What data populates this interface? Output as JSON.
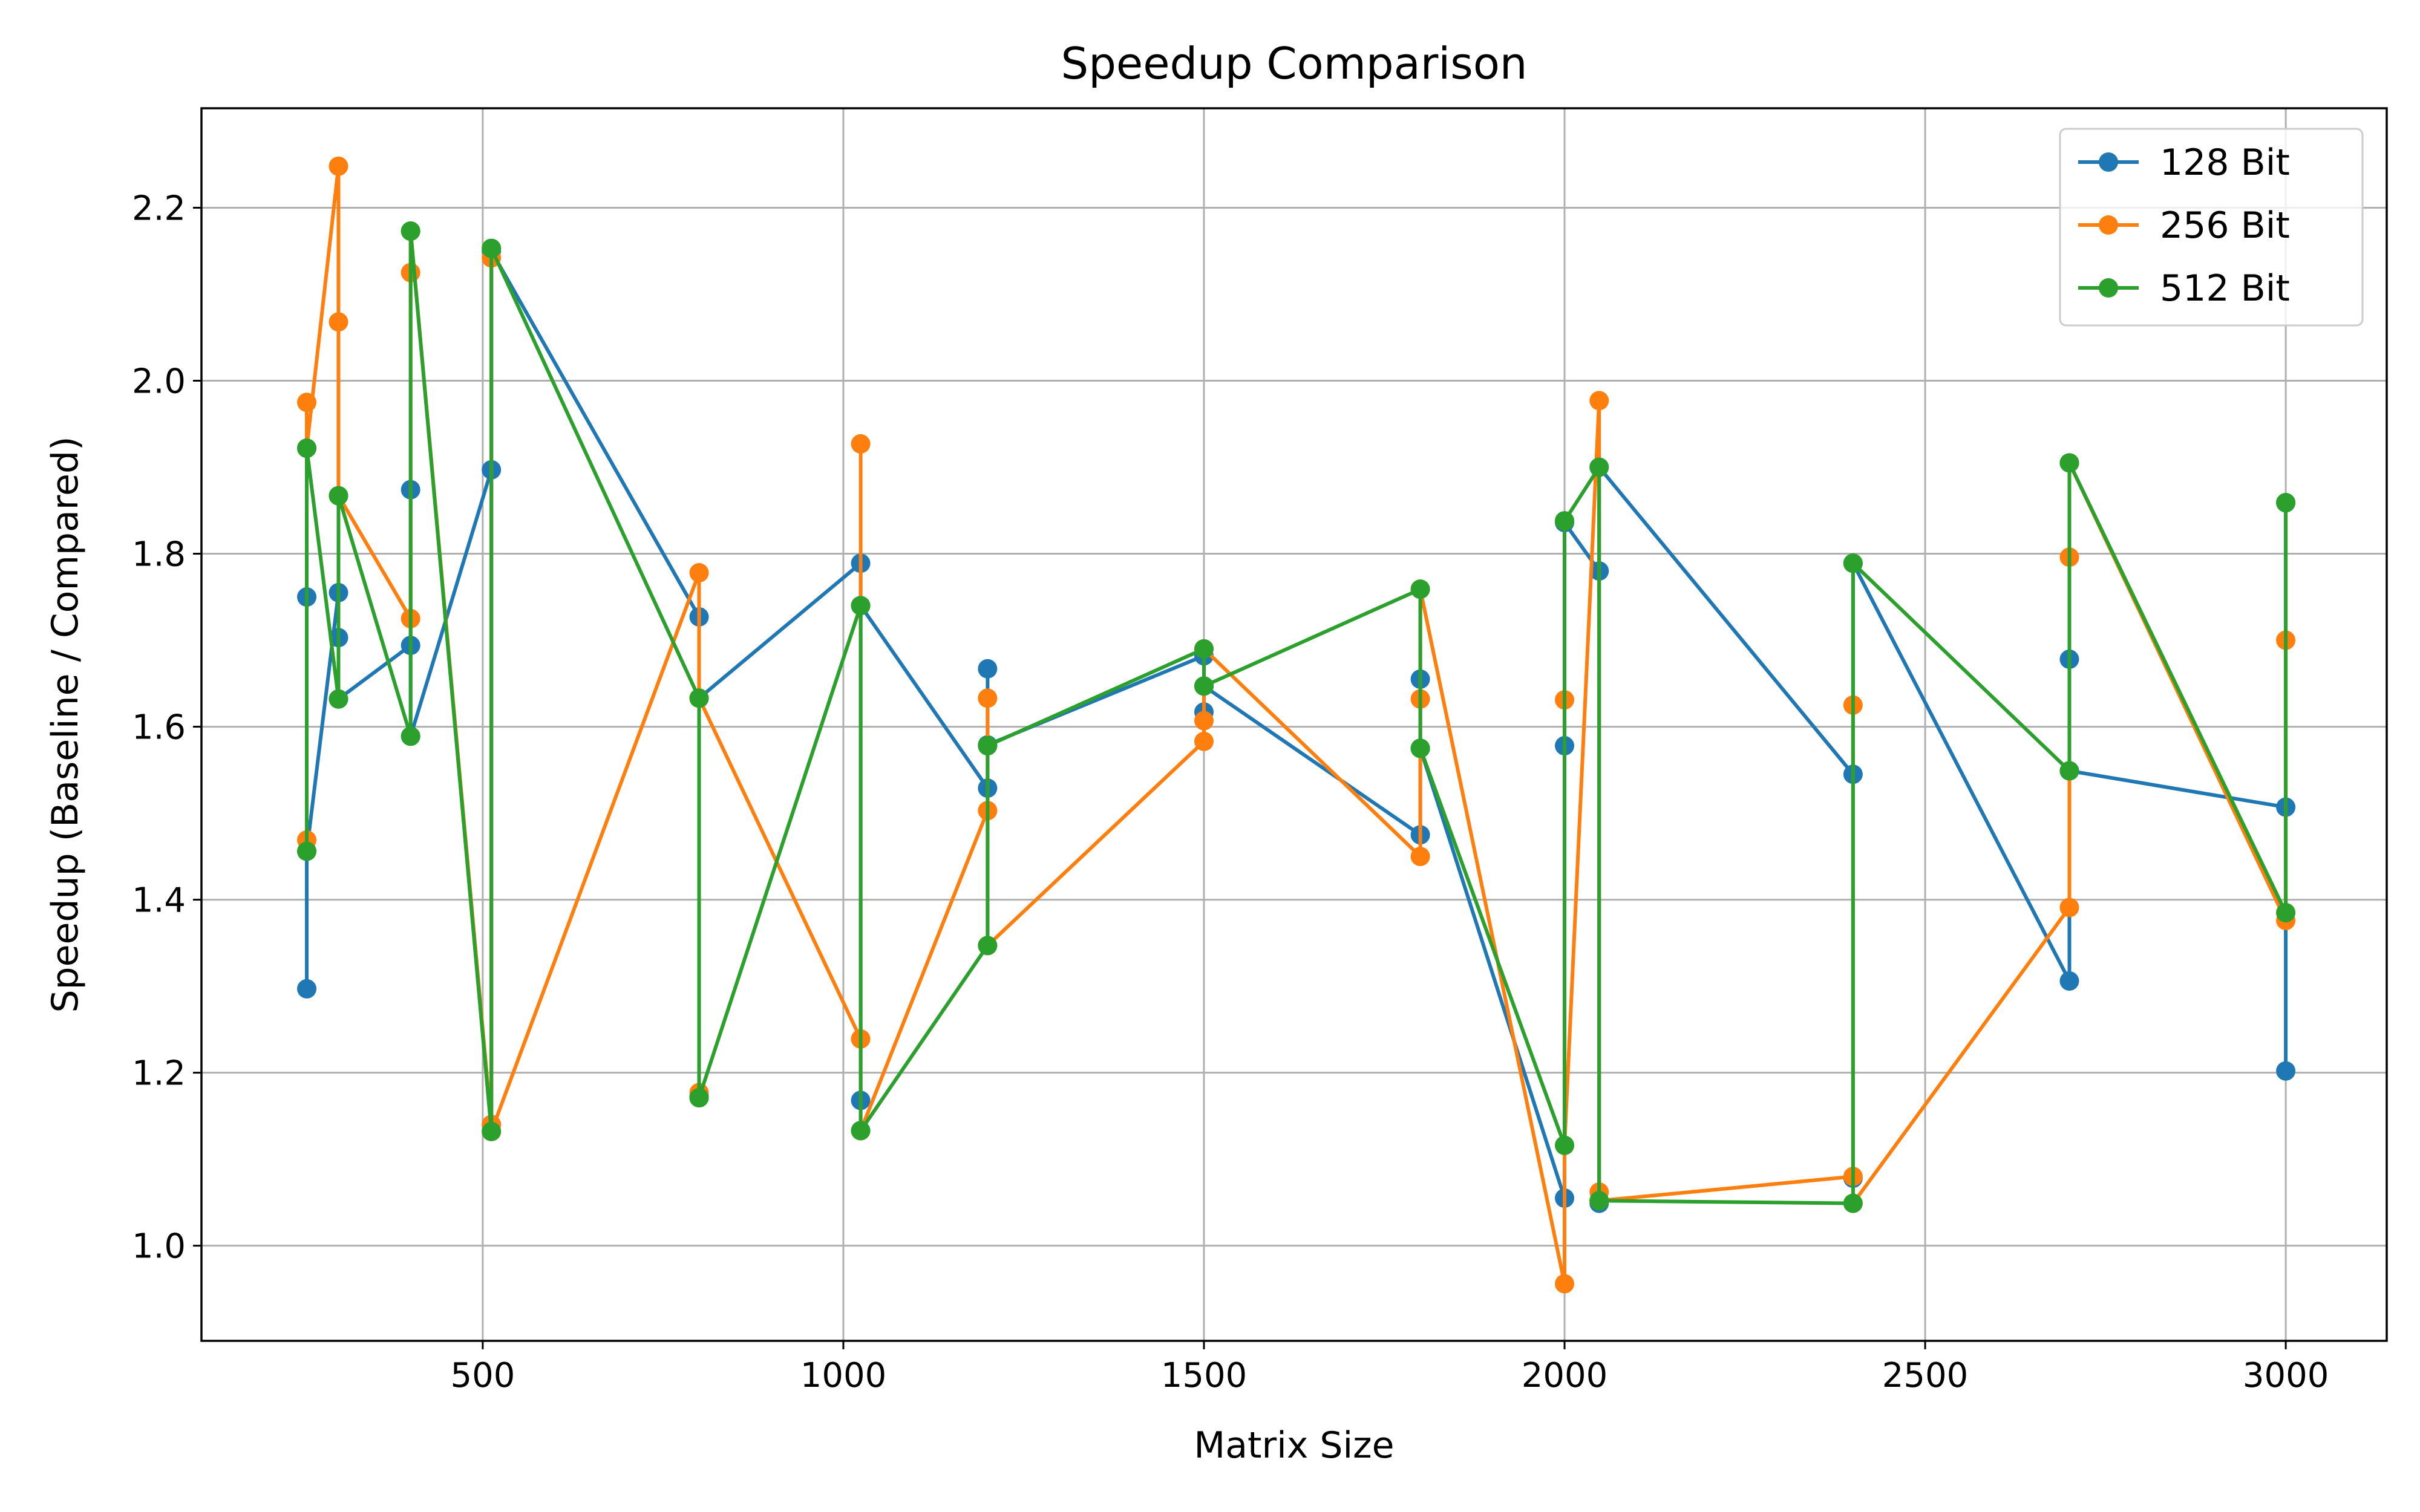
{
  "chart_data": {
    "type": "line",
    "title": "Speedup Comparison",
    "xlabel": "Matrix Size",
    "ylabel": "Speedup (Baseline / Compared)",
    "xlim": [
      110,
      3140
    ],
    "ylim": [
      0.89,
      2.315
    ],
    "xticks": [
      500,
      1000,
      1500,
      2000,
      2500,
      3000
    ],
    "xtick_labels": [
      "500",
      "1000",
      "1500",
      "2000",
      "2500",
      "3000"
    ],
    "yticks": [
      1.0,
      1.2,
      1.4,
      1.6,
      1.8,
      2.0,
      2.2
    ],
    "ytick_labels": [
      "1.0",
      "1.2",
      "1.4",
      "1.6",
      "1.8",
      "2.0",
      "2.2"
    ],
    "grid": true,
    "legend_position": "top-right",
    "x": [
      256,
      256,
      256,
      300,
      300,
      300,
      400,
      400,
      400,
      512,
      512,
      512,
      800,
      800,
      800,
      1024,
      1024,
      1024,
      1200,
      1200,
      1200,
      1500,
      1500,
      1500,
      1800,
      1800,
      1800,
      2000,
      2000,
      2000,
      2048,
      2048,
      2048,
      2400,
      2400,
      2400,
      2700,
      2700,
      2700,
      3000,
      3000,
      3000
    ],
    "series": [
      {
        "name": "128 Bit",
        "color": "#1f77b4",
        "values": [
          1.75,
          1.297,
          1.456,
          1.755,
          1.703,
          1.632,
          1.694,
          1.874,
          1.589,
          1.897,
          1.14,
          2.15,
          1.727,
          1.173,
          1.633,
          1.789,
          1.168,
          1.74,
          1.529,
          1.667,
          1.579,
          1.682,
          1.617,
          1.647,
          1.475,
          1.655,
          1.575,
          1.055,
          1.578,
          1.836,
          1.78,
          1.049,
          1.9,
          1.545,
          1.078,
          1.789,
          1.306,
          1.678,
          1.549,
          1.507,
          1.202,
          1.859
        ]
      },
      {
        "name": "256 Bit",
        "color": "#ff7f0e",
        "values": [
          1.469,
          1.975,
          1.922,
          2.248,
          2.068,
          1.867,
          1.725,
          2.125,
          2.173,
          1.14,
          2.142,
          1.132,
          1.778,
          1.177,
          1.633,
          1.239,
          1.927,
          1.133,
          1.503,
          1.633,
          1.347,
          1.583,
          1.607,
          1.69,
          1.45,
          1.632,
          1.759,
          0.956,
          1.631,
          1.116,
          1.977,
          1.062,
          1.052,
          1.08,
          1.625,
          1.049,
          1.391,
          1.796,
          1.905,
          1.376,
          1.7,
          1.385
        ]
      },
      {
        "name": "512 Bit",
        "color": "#2ca02c",
        "values": [
          1.456,
          1.922,
          1.922,
          1.632,
          1.867,
          1.867,
          1.589,
          2.173,
          2.173,
          1.132,
          2.153,
          2.153,
          1.633,
          1.171,
          1.171,
          1.74,
          1.133,
          1.133,
          1.347,
          1.578,
          1.578,
          1.69,
          1.647,
          1.647,
          1.759,
          1.575,
          1.575,
          1.116,
          1.838,
          1.838,
          1.9,
          1.052,
          1.052,
          1.049,
          1.789,
          1.789,
          1.549,
          1.905,
          1.905,
          1.385,
          1.859,
          1.859
        ]
      }
    ]
  }
}
